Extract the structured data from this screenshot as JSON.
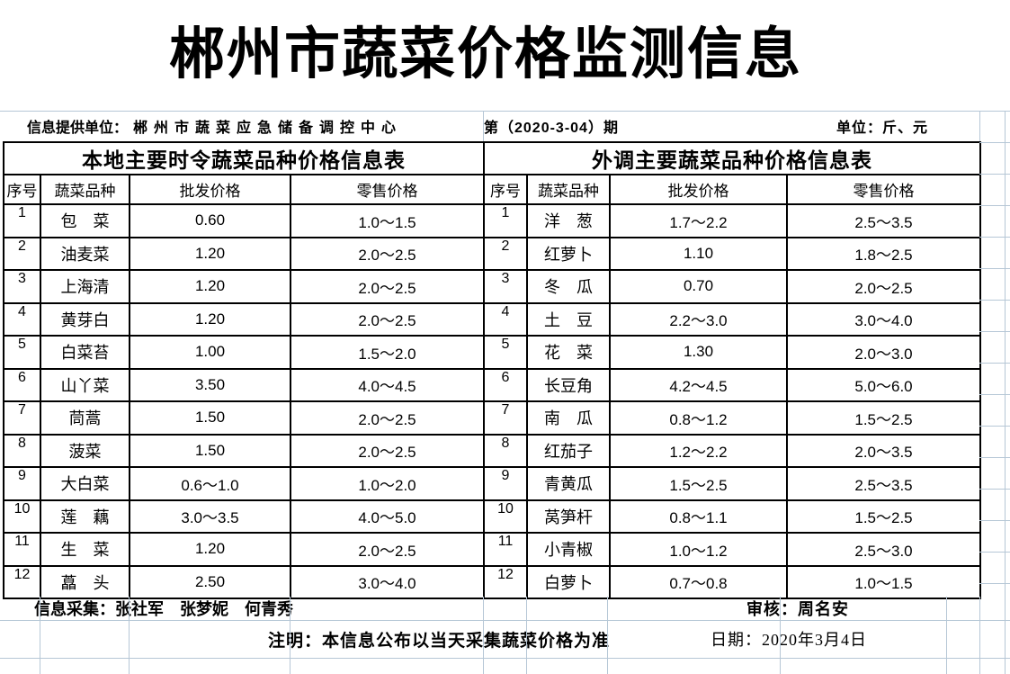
{
  "title": "郴州市蔬菜价格监测信息",
  "info_bar": {
    "provider_label": "信息提供单位：",
    "provider_value": "郴州市蔬菜应急储备调控中心",
    "issue": "第（2020-3-04）期",
    "unit": "单位：斤、元"
  },
  "tables": [
    {
      "title": "本地主要时令蔬菜品种价格信息表",
      "headers": [
        "序号",
        "蔬菜品种",
        "批发价格",
        "零售价格"
      ],
      "rows": [
        [
          "1",
          "包　菜",
          "0.60",
          "1.0～1.5"
        ],
        [
          "2",
          "油麦菜",
          "1.20",
          "2.0～2.5"
        ],
        [
          "3",
          "上海清",
          "1.20",
          "2.0～2.5"
        ],
        [
          "4",
          "黄芽白",
          "1.20",
          "2.0～2.5"
        ],
        [
          "5",
          "白菜苔",
          "1.00",
          "1.5～2.0"
        ],
        [
          "6",
          "山丫菜",
          "3.50",
          "4.0～4.5"
        ],
        [
          "7",
          "茼蒿",
          "1.50",
          "2.0～2.5"
        ],
        [
          "8",
          "菠菜",
          "1.50",
          "2.0～2.5"
        ],
        [
          "9",
          "大白菜",
          "0.6～1.0",
          "1.0～2.0"
        ],
        [
          "10",
          "莲　藕",
          "3.0～3.5",
          "4.0～5.0"
        ],
        [
          "11",
          "生　菜",
          "1.20",
          "2.0～2.5"
        ],
        [
          "12",
          "藠　头",
          "2.50",
          "3.0～4.0"
        ]
      ]
    },
    {
      "title": "外调主要蔬菜品种价格信息表",
      "headers": [
        "序号",
        "蔬菜品种",
        "批发价格",
        "零售价格"
      ],
      "rows": [
        [
          "1",
          "洋　葱",
          "1.7～2.2",
          "2.5～3.5"
        ],
        [
          "2",
          "红萝卜",
          "1.10",
          "1.8～2.5"
        ],
        [
          "3",
          "冬　瓜",
          "0.70",
          "2.0～2.5"
        ],
        [
          "4",
          "土　豆",
          "2.2～3.0",
          "3.0～4.0"
        ],
        [
          "5",
          "花　菜",
          "1.30",
          "2.0～3.0"
        ],
        [
          "6",
          "长豆角",
          "4.2～4.5",
          "5.0～6.0"
        ],
        [
          "7",
          "南　瓜",
          "0.8～1.2",
          "1.5～2.5"
        ],
        [
          "8",
          "红茄子",
          "1.2～2.2",
          "2.0～3.5"
        ],
        [
          "9",
          "青黄瓜",
          "1.5～2.5",
          "2.5～3.5"
        ],
        [
          "10",
          "莴笋杆",
          "0.8～1.1",
          "1.5～2.5"
        ],
        [
          "11",
          "小青椒",
          "1.0～1.2",
          "2.5～3.0"
        ],
        [
          "12",
          "白萝卜",
          "0.7～0.8",
          "1.0～1.5"
        ]
      ]
    }
  ],
  "footer": {
    "collectors": "信息采集：张社军　张梦妮　何青秀",
    "auditor": "审核：周名安",
    "note": "注明：本信息公布以当天采集蔬菜价格为准",
    "date": "日期：2020年3月4日"
  },
  "colors": {
    "gridline": "#b6c7d6",
    "border": "#000000"
  }
}
